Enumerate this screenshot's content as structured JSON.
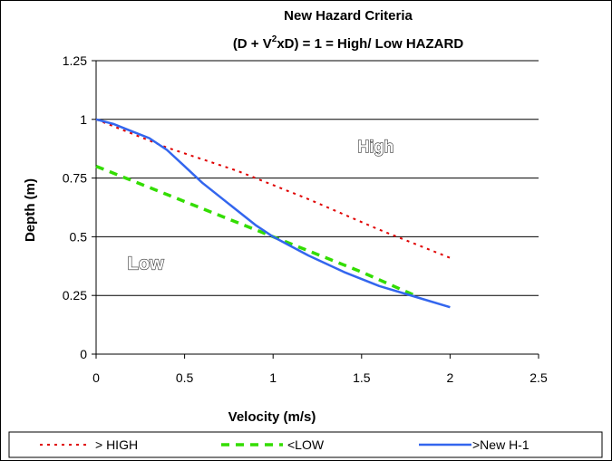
{
  "chart_data": {
    "type": "line",
    "title_line1": "New Hazard Criteria",
    "title_line2_prefix": "(D + V",
    "title_line2_sup": "2",
    "title_line2_suffix": "xD) = 1 = High/ Low HAZARD",
    "xlabel": "Velocity (m/s)",
    "ylabel": "Depth (m)",
    "xlim": [
      0,
      2.5
    ],
    "ylim": [
      0,
      1.25
    ],
    "xticks": [
      0,
      0.5,
      1,
      1.5,
      2,
      2.5
    ],
    "xtick_labels": [
      "0",
      "0.5",
      "1",
      "1.5",
      "2",
      "2.5"
    ],
    "yticks": [
      0,
      0.25,
      0.5,
      0.75,
      1,
      1.25
    ],
    "ytick_labels": [
      "0",
      "0.25",
      "0.5",
      "0.75",
      "1",
      "1.25"
    ],
    "grid": "horizontal",
    "region_labels": [
      {
        "text": "High",
        "x": 1.58,
        "y": 0.86
      },
      {
        "text": "Low",
        "x": 0.28,
        "y": 0.36
      }
    ],
    "legend_position": "bottom",
    "series": [
      {
        "name": "> HIGH",
        "color": "#e00000",
        "style": "dotted",
        "x": [
          0,
          0.4,
          0.8,
          1.2,
          1.6,
          2.0
        ],
        "y": [
          1.0,
          0.88,
          0.78,
          0.66,
          0.53,
          0.41
        ]
      },
      {
        "name": "<LOW",
        "color": "#33dd00",
        "style": "dashed",
        "x": [
          0,
          0.5,
          1.0,
          1.5,
          1.8
        ],
        "y": [
          0.8,
          0.65,
          0.5,
          0.35,
          0.25
        ]
      },
      {
        "name": ">New H-1",
        "color": "#3366ee",
        "style": "solid",
        "x": [
          0,
          0.1,
          0.2,
          0.3,
          0.4,
          0.5,
          0.6,
          0.7,
          0.8,
          0.9,
          1.0,
          1.2,
          1.4,
          1.6,
          1.8,
          2.0
        ],
        "y": [
          1.0,
          0.98,
          0.95,
          0.92,
          0.87,
          0.8,
          0.73,
          0.67,
          0.61,
          0.55,
          0.5,
          0.42,
          0.35,
          0.29,
          0.245,
          0.2
        ]
      }
    ]
  }
}
